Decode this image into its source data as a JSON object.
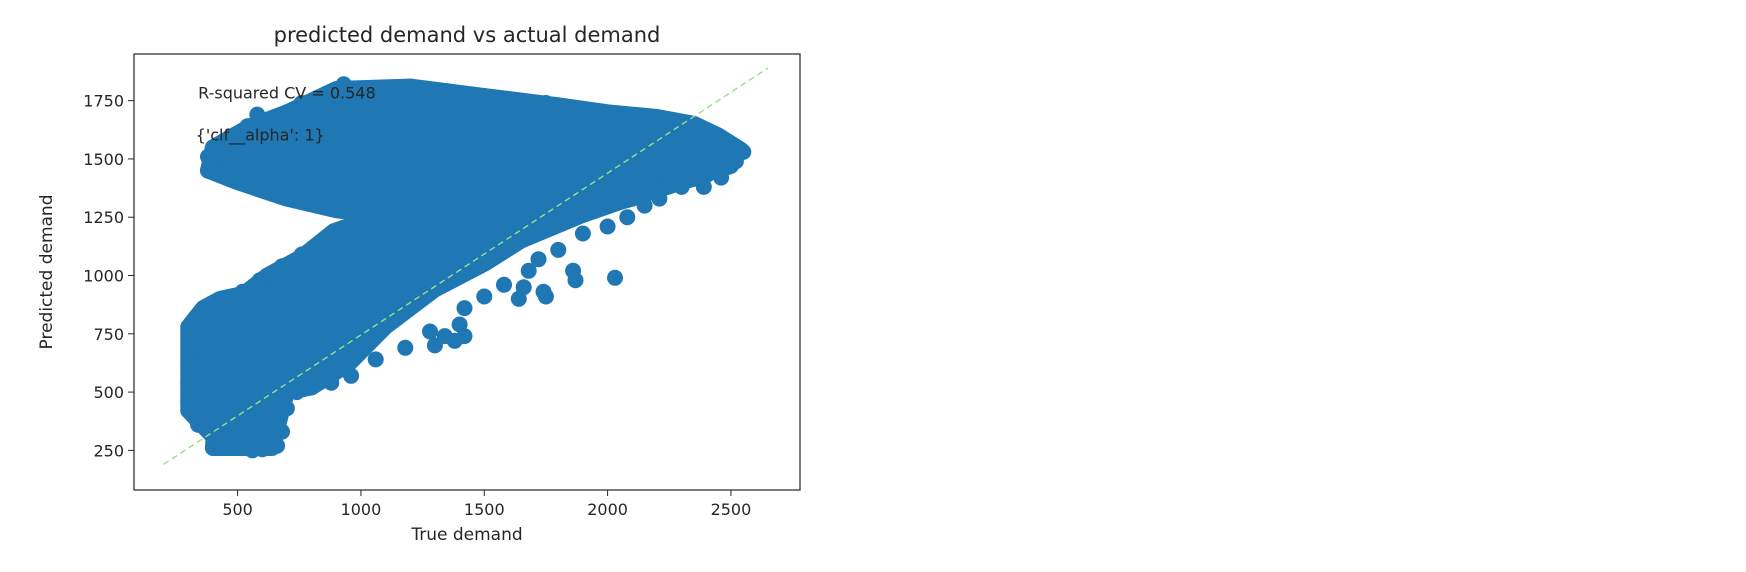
{
  "chart_data": {
    "type": "scatter",
    "title": "predicted demand vs actual demand",
    "xlabel": "True demand",
    "ylabel": "Predicted demand",
    "xlim": [
      80,
      2780
    ],
    "ylim": [
      80,
      1950
    ],
    "xticks": [
      500,
      1000,
      1500,
      2000,
      2500
    ],
    "yticks": [
      250,
      500,
      750,
      1000,
      1250,
      1500,
      1750
    ],
    "grid": false,
    "legend": "none",
    "colors": {
      "points": "#1f77b4",
      "reference_line": "#98df8a",
      "axes": "#262626"
    },
    "reference_line": {
      "x": [
        200,
        2650
      ],
      "y": [
        190,
        1890
      ],
      "style": "dashed"
    },
    "annotations": [
      {
        "text": "R-squared CV = 0.548",
        "x": 340,
        "y": 1760
      },
      {
        "text": "{'clf__alpha': 1}",
        "x": 330,
        "y": 1580
      }
    ],
    "series": [
      {
        "marker_size_data": 26,
        "dense_regions": [
          [
            [
              400,
              260
            ],
            [
              430,
              700
            ],
            [
              420,
              820
            ],
            [
              500,
              900
            ],
            [
              620,
              1000
            ],
            [
              760,
              1080
            ],
            [
              890,
              1190
            ],
            [
              1000,
              1230
            ],
            [
              1300,
              1370
            ],
            [
              1500,
              1430
            ],
            [
              1700,
              1460
            ],
            [
              1900,
              1470
            ],
            [
              2100,
              1480
            ],
            [
              2300,
              1490
            ],
            [
              2480,
              1500
            ],
            [
              2400,
              1430
            ],
            [
              2200,
              1370
            ],
            [
              1900,
              1260
            ],
            [
              1650,
              1150
            ],
            [
              1500,
              1050
            ],
            [
              1300,
              940
            ],
            [
              1100,
              780
            ],
            [
              950,
              620
            ],
            [
              800,
              520
            ],
            [
              700,
              500
            ],
            [
              640,
              260
            ]
          ],
          [
            [
              380,
              1450
            ],
            [
              400,
              1550
            ],
            [
              550,
              1640
            ],
            [
              700,
              1700
            ],
            [
              900,
              1800
            ],
            [
              1200,
              1810
            ],
            [
              1500,
              1770
            ],
            [
              1800,
              1730
            ],
            [
              2000,
              1700
            ],
            [
              2200,
              1680
            ],
            [
              2350,
              1650
            ],
            [
              2450,
              1600
            ],
            [
              2540,
              1540
            ],
            [
              2500,
              1470
            ],
            [
              2300,
              1400
            ],
            [
              2100,
              1330
            ],
            [
              1850,
              1260
            ],
            [
              1500,
              1240
            ],
            [
              1200,
              1240
            ],
            [
              900,
              1280
            ],
            [
              700,
              1330
            ],
            [
              500,
              1400
            ]
          ],
          [
            [
              300,
              420
            ],
            [
              300,
              780
            ],
            [
              360,
              860
            ],
            [
              430,
              900
            ],
            [
              520,
              920
            ],
            [
              560,
              700
            ],
            [
              560,
              400
            ],
            [
              500,
              300
            ],
            [
              400,
              310
            ]
          ]
        ],
        "points": [
          [
            380,
            1450
          ],
          [
            380,
            1510
          ],
          [
            400,
            1480
          ],
          [
            420,
            1520
          ],
          [
            440,
            1550
          ],
          [
            480,
            1580
          ],
          [
            540,
            1640
          ],
          [
            580,
            1690
          ],
          [
            700,
            1700
          ],
          [
            760,
            1740
          ],
          [
            860,
            1780
          ],
          [
            930,
            1820
          ],
          [
            1000,
            1800
          ],
          [
            1080,
            1790
          ],
          [
            1200,
            1810
          ],
          [
            1350,
            1790
          ],
          [
            1500,
            1770
          ],
          [
            1640,
            1750
          ],
          [
            1750,
            1740
          ],
          [
            1880,
            1710
          ],
          [
            2000,
            1690
          ],
          [
            2150,
            1670
          ],
          [
            2240,
            1650
          ],
          [
            2330,
            1640
          ],
          [
            2400,
            1610
          ],
          [
            2480,
            1570
          ],
          [
            2550,
            1530
          ],
          [
            2520,
            1490
          ],
          [
            2460,
            1420
          ],
          [
            2390,
            1380
          ],
          [
            2300,
            1380
          ],
          [
            2210,
            1330
          ],
          [
            2150,
            1300
          ],
          [
            2080,
            1250
          ],
          [
            2000,
            1210
          ],
          [
            1900,
            1180
          ],
          [
            1800,
            1110
          ],
          [
            1720,
            1070
          ],
          [
            1680,
            1020
          ],
          [
            1580,
            960
          ],
          [
            1500,
            910
          ],
          [
            1420,
            860
          ],
          [
            1400,
            790
          ],
          [
            1340,
            740
          ],
          [
            1300,
            700
          ],
          [
            1280,
            760
          ],
          [
            1180,
            690
          ],
          [
            1060,
            640
          ],
          [
            960,
            570
          ],
          [
            880,
            540
          ],
          [
            800,
            520
          ],
          [
            740,
            500
          ],
          [
            700,
            430
          ],
          [
            680,
            330
          ],
          [
            660,
            270
          ],
          [
            600,
            255
          ],
          [
            560,
            250
          ],
          [
            500,
            260
          ],
          [
            440,
            290
          ],
          [
            400,
            320
          ],
          [
            340,
            360
          ],
          [
            300,
            460
          ],
          [
            300,
            540
          ],
          [
            310,
            620
          ],
          [
            320,
            700
          ],
          [
            340,
            790
          ],
          [
            380,
            840
          ],
          [
            420,
            870
          ],
          [
            460,
            900
          ],
          [
            520,
            930
          ],
          [
            590,
            980
          ],
          [
            680,
            1040
          ],
          [
            760,
            1090
          ],
          [
            860,
            1130
          ],
          [
            950,
            1170
          ],
          [
            1000,
            1240
          ],
          [
            1050,
            1320
          ],
          [
            1100,
            1380
          ],
          [
            1160,
            1420
          ],
          [
            1250,
            1460
          ],
          [
            1500,
            1450
          ],
          [
            1700,
            1470
          ],
          [
            1890,
            1480
          ],
          [
            2100,
            1490
          ],
          [
            2300,
            1510
          ],
          [
            2500,
            1520
          ],
          [
            1170,
            1120
          ],
          [
            1080,
            1060
          ],
          [
            1550,
            1400
          ],
          [
            1300,
            1190
          ],
          [
            1950,
            1540
          ],
          [
            1810,
            1650
          ],
          [
            2250,
            1570
          ],
          [
            1240,
            1640
          ],
          [
            1640,
            1620
          ],
          [
            620,
            1440
          ],
          [
            760,
            1400
          ],
          [
            900,
            1390
          ],
          [
            560,
            1530
          ],
          [
            820,
            1600
          ],
          [
            1000,
            1520
          ],
          [
            1180,
            1550
          ],
          [
            1860,
            1020
          ],
          [
            1870,
            980
          ],
          [
            1640,
            900
          ],
          [
            1660,
            950
          ],
          [
            1740,
            930
          ],
          [
            1750,
            910
          ],
          [
            2030,
            990
          ],
          [
            1420,
            740
          ],
          [
            1380,
            720
          ],
          [
            950,
            880
          ],
          [
            1050,
            940
          ],
          [
            1200,
            900
          ],
          [
            1100,
            980
          ],
          [
            850,
            760
          ],
          [
            700,
            720
          ],
          [
            600,
            600
          ],
          [
            480,
            650
          ],
          [
            450,
            420
          ],
          [
            500,
            500
          ],
          [
            620,
            820
          ],
          [
            780,
            900
          ],
          [
            900,
            1000
          ],
          [
            1000,
            1100
          ],
          [
            1400,
            1300
          ],
          [
            1700,
            1330
          ],
          [
            2000,
            1390
          ],
          [
            2200,
            1440
          ],
          [
            2400,
            1480
          ]
        ]
      }
    ]
  }
}
